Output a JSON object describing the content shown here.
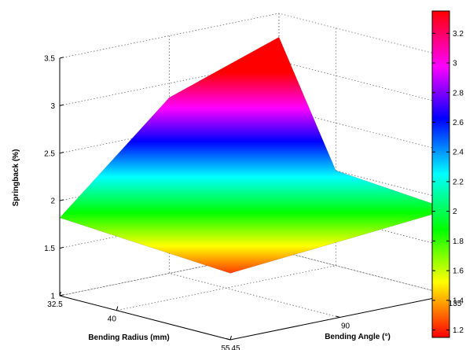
{
  "chart_data": {
    "type": "surface",
    "xlabel": "Bending Radius (mm)",
    "ylabel": "Bending Angle (°)",
    "zlabel": "Springback (%)",
    "x_ticks": [
      32.5,
      40,
      55
    ],
    "y_ticks": [
      45,
      90,
      135
    ],
    "z_ticks": [
      1,
      1.5,
      2,
      2.5,
      3,
      3.5
    ],
    "xlim": [
      32.5,
      55
    ],
    "ylim": [
      45,
      135
    ],
    "zlim": [
      1,
      3.5
    ],
    "grid": true,
    "colormap": "hsv",
    "colorbar": {
      "ticks": [
        1.2,
        1.4,
        1.6,
        1.8,
        2,
        2.2,
        2.4,
        2.6,
        2.8,
        3,
        3.2
      ],
      "range": [
        1.15,
        3.35
      ]
    },
    "surface_points": [
      {
        "radius": 32.5,
        "angle": 45,
        "springback": 1.82
      },
      {
        "radius": 32.5,
        "angle": 90,
        "springback": 2.85
      },
      {
        "radius": 32.5,
        "angle": 135,
        "springback": 3.25
      },
      {
        "radius": 40,
        "angle": 135,
        "springback": 2.0
      },
      {
        "radius": 55,
        "angle": 135,
        "springback": 1.9
      },
      {
        "radius": 55,
        "angle": 45,
        "springback": 1.7
      }
    ]
  }
}
